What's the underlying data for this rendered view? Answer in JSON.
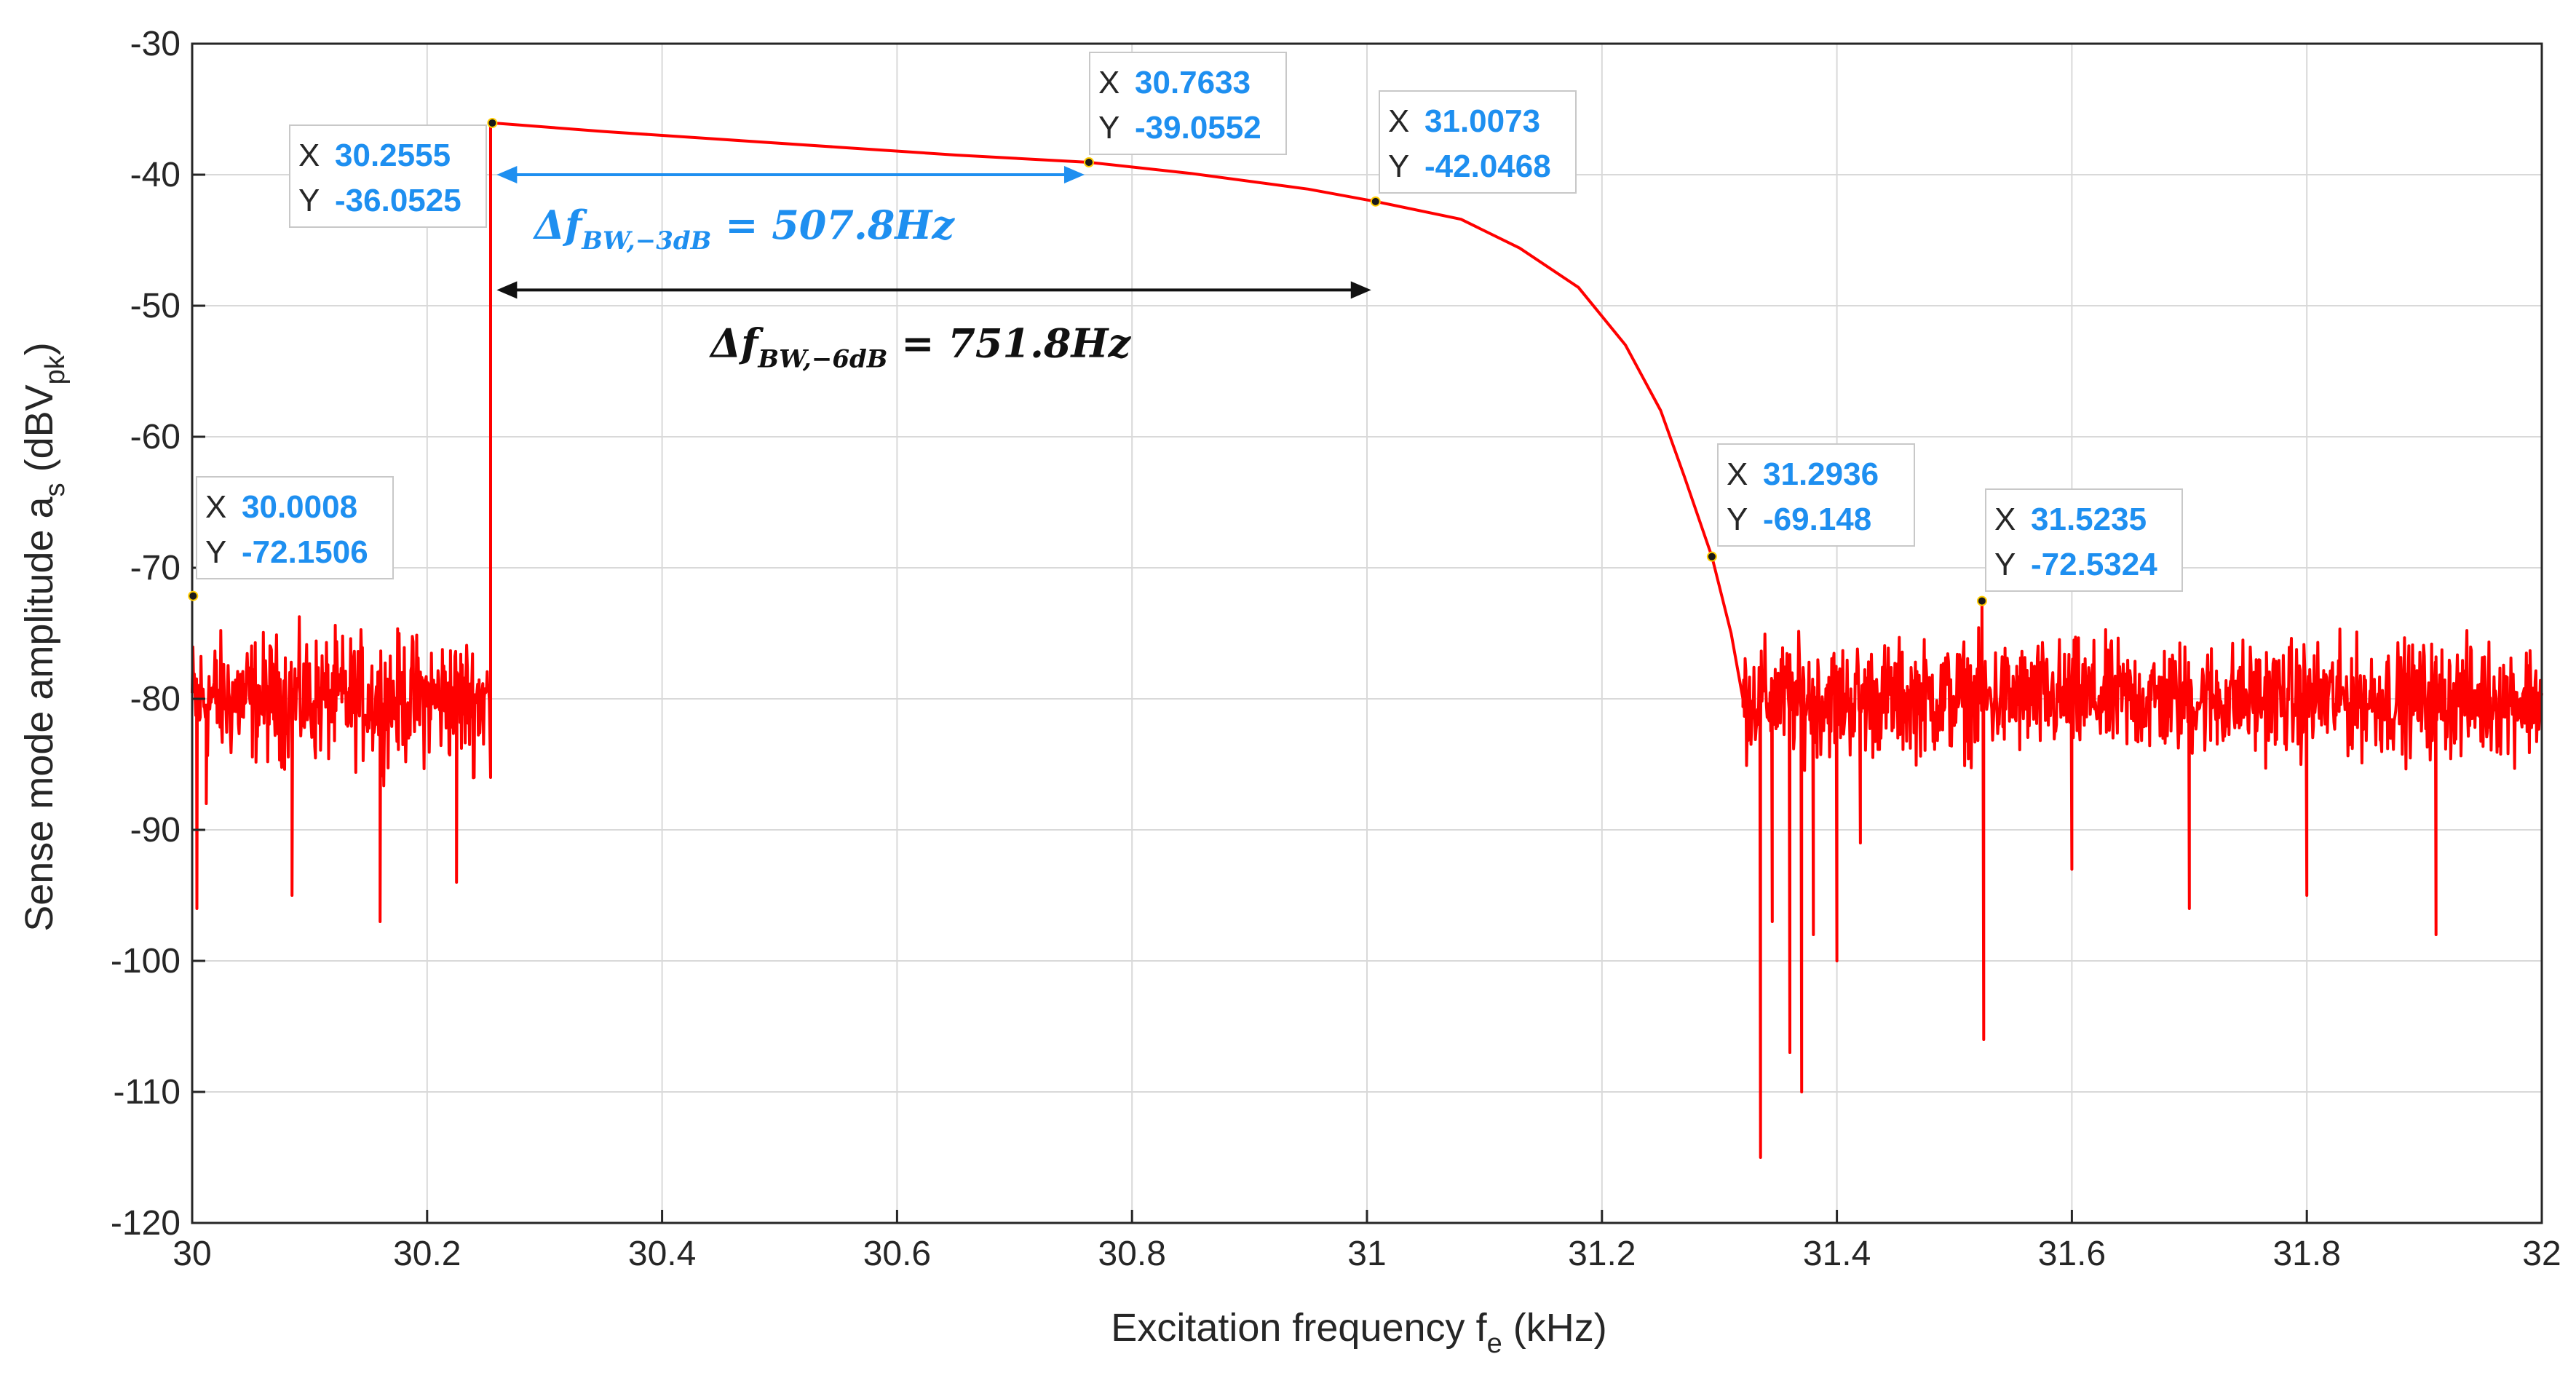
{
  "colors": {
    "series": "#ff0000",
    "axis": "#262626",
    "grid": "#d9d9d9",
    "datatip_value": "#1e8ff0",
    "bw3_color": "#1e8ff0",
    "bw6_color": "#111111",
    "datatip_bg": "#ffffff",
    "datatip_border": "#c8c8c8"
  },
  "chart_data": {
    "type": "line",
    "title": "",
    "xlabel": {
      "main": "Excitation frequency f",
      "sub": "e",
      "unit": " (kHz)"
    },
    "ylabel": {
      "main": "Sense mode amplitude a",
      "sub": "s",
      "unit_open": " (dBV",
      "unit_sub": "pk",
      "unit_close": ")"
    },
    "xlim": [
      30,
      32
    ],
    "ylim": [
      -120,
      -30
    ],
    "grid": true,
    "xticks": [
      30,
      30.2,
      30.4,
      30.6,
      30.8,
      31,
      31.2,
      31.4,
      31.6,
      31.8,
      32
    ],
    "xtick_labels": [
      "30",
      "30.2",
      "30.4",
      "30.6",
      "30.8",
      "31",
      "31.2",
      "31.4",
      "31.6",
      "31.8",
      "32"
    ],
    "yticks": [
      -30,
      -40,
      -50,
      -60,
      -70,
      -80,
      -90,
      -100,
      -110,
      -120
    ],
    "ytick_labels": [
      "-30",
      "-40",
      "-50",
      "-60",
      "-70",
      "-80",
      "-90",
      "-100",
      "-110",
      "-120"
    ],
    "series": [
      {
        "name": "Sense mode amplitude",
        "segments": [
          {
            "kind": "noise",
            "x_start": 30.0,
            "x_end": 30.253,
            "mean": -80,
            "spread": 5,
            "spikes": [
              [
                30.004,
                -96
              ],
              [
                30.012,
                -88
              ],
              [
                30.025,
                -82
              ],
              [
                30.085,
                -95
              ],
              [
                30.16,
                -97
              ],
              [
                30.225,
                -94
              ],
              [
                30.24,
                -86
              ]
            ]
          },
          {
            "kind": "jump",
            "x": 30.254,
            "from": -86,
            "to": -36.0525
          },
          {
            "kind": "response",
            "points": [
              [
                30.2555,
                -36.0525
              ],
              [
                30.35,
                -36.7
              ],
              [
                30.45,
                -37.3
              ],
              [
                30.55,
                -37.9
              ],
              [
                30.65,
                -38.5
              ],
              [
                30.7633,
                -39.0552
              ],
              [
                30.85,
                -39.9
              ],
              [
                30.95,
                -41.1
              ],
              [
                31.0073,
                -42.0468
              ],
              [
                31.08,
                -43.4
              ],
              [
                31.13,
                -45.6
              ],
              [
                31.18,
                -48.6
              ],
              [
                31.22,
                -53
              ],
              [
                31.25,
                -58
              ],
              [
                31.27,
                -63
              ],
              [
                31.2936,
                -69.148
              ],
              [
                31.31,
                -75
              ],
              [
                31.32,
                -80
              ]
            ]
          },
          {
            "kind": "noise",
            "x_start": 31.32,
            "x_end": 32.0,
            "mean": -80,
            "spread": 4.5,
            "spikes": [
              [
                31.335,
                -115
              ],
              [
                31.345,
                -97
              ],
              [
                31.36,
                -107
              ],
              [
                31.37,
                -110
              ],
              [
                31.38,
                -98
              ],
              [
                31.4,
                -100
              ],
              [
                31.42,
                -91
              ],
              [
                31.5235,
                -72.5324
              ],
              [
                31.525,
                -106
              ],
              [
                31.6,
                -93
              ],
              [
                31.7,
                -96
              ],
              [
                31.8,
                -95
              ],
              [
                31.91,
                -98
              ]
            ]
          }
        ]
      }
    ],
    "datatips": [
      {
        "x_label": "X",
        "y_label": "Y",
        "x": "30.0008",
        "y": "-72.1506",
        "px": 30.0008,
        "py": -72.1506
      },
      {
        "x_label": "X",
        "y_label": "Y",
        "x": "30.2555",
        "y": "-36.0525",
        "px": 30.2555,
        "py": -36.0525
      },
      {
        "x_label": "X",
        "y_label": "Y",
        "x": "30.7633",
        "y": "-39.0552",
        "px": 30.7633,
        "py": -39.0552
      },
      {
        "x_label": "X",
        "y_label": "Y",
        "x": "31.0073",
        "y": "-42.0468",
        "px": 31.0073,
        "py": -42.0468
      },
      {
        "x_label": "X",
        "y_label": "Y",
        "x": "31.2936",
        "y": "-69.148",
        "px": 31.2936,
        "py": -69.148
      },
      {
        "x_label": "X",
        "y_label": "Y",
        "x": "31.5235",
        "y": "-72.5324",
        "px": 31.5235,
        "py": -72.5324
      }
    ],
    "annotations": [
      {
        "name": "bw-3db",
        "label_main": "Δf",
        "label_sub": "BW,−3dB",
        "label_value": " = 507.8Hz",
        "x_from": 30.2555,
        "x_to": 30.7633,
        "y": -40
      },
      {
        "name": "bw-6db",
        "label_main": "Δf",
        "label_sub": "BW,−6dB",
        "label_value": " = 751.8Hz",
        "x_from": 30.2555,
        "x_to": 31.0073,
        "y": -48.8
      }
    ]
  }
}
